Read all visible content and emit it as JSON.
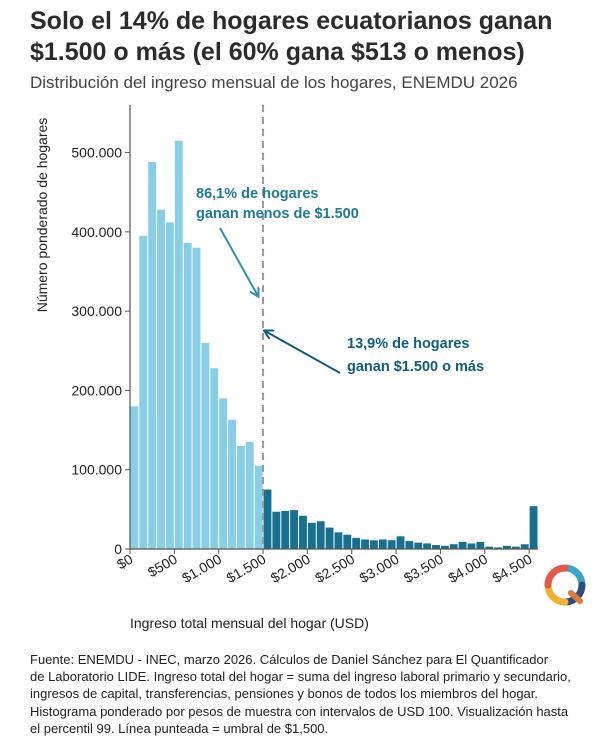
{
  "header": {
    "title_line1": "Solo el 14% de hogares ecuatorianos ganan",
    "title_line2": "$1.500 o más (el 60% gana $513 o menos)",
    "subtitle": "Distribución del ingreso mensual de los hogares, ENEMDU 2026"
  },
  "caption": {
    "line1": "Fuente: ENEMDU - INEC, marzo 2026. Cálculos de Daniel Sánchez para El Quantificador",
    "line2": "de Laboratorio LIDE. Ingreso total del hogar = suma del ingreso laboral primario y secundario,",
    "line3": "ingresos de capital, transferencias, pensiones y bonos de todos los miembros del hogar.",
    "line4": "Histograma ponderado por pesos de muestra con intervalos de USD 100. Visualización hasta",
    "line5": "el percentil 99. Línea punteada = umbral de $1,500."
  },
  "logo": {
    "icon": "q-logo-icon"
  },
  "colors": {
    "below": "#87CEE6",
    "above": "#17708F",
    "annotation": "#1C7A96",
    "arrow_left": "#2E8FB0",
    "arrow_right": "#0F5E7C",
    "threshold_line": "#999999"
  },
  "chart_data": {
    "type": "bar",
    "title": "Solo el 14% de hogares ecuatorianos ganan $1.500 o más (el 60% gana $513 o menos)",
    "subtitle": "Distribución del ingreso mensual de los hogares, ENEMDU 2026",
    "xlabel": "Ingreso total mensual del hogar (USD)",
    "ylabel": "Número ponderado de hogares",
    "xlim": [
      0,
      4600
    ],
    "ylim": [
      0,
      560000
    ],
    "bin_width": 100,
    "x_ticks": [
      0,
      500,
      1000,
      1500,
      2000,
      2500,
      3000,
      3500,
      4000,
      4500
    ],
    "x_tick_labels": [
      "$0",
      "$500",
      "$1.000",
      "$1.500",
      "$2.000",
      "$2.500",
      "$3.000",
      "$3.500",
      "$4.000",
      "$4.500"
    ],
    "y_ticks": [
      0,
      100000,
      200000,
      300000,
      400000,
      500000
    ],
    "y_tick_labels": [
      "0",
      "100.000",
      "200.000",
      "300.000",
      "400.000",
      "500.000"
    ],
    "threshold": 1500,
    "bins_start": [
      0,
      100,
      200,
      300,
      400,
      500,
      600,
      700,
      800,
      900,
      1000,
      1100,
      1200,
      1300,
      1400,
      1500,
      1600,
      1700,
      1800,
      1900,
      2000,
      2100,
      2200,
      2300,
      2400,
      2500,
      2600,
      2700,
      2800,
      2900,
      3000,
      3100,
      3200,
      3300,
      3400,
      3500,
      3600,
      3700,
      3800,
      3900,
      4000,
      4100,
      4200,
      4300,
      4400,
      4500
    ],
    "values": [
      180000,
      395000,
      488000,
      428000,
      412000,
      515000,
      386000,
      380000,
      260000,
      228000,
      190000,
      163000,
      130000,
      135000,
      105000,
      75000,
      47000,
      48000,
      49000,
      42000,
      33000,
      35000,
      27000,
      21000,
      18000,
      14000,
      12000,
      11000,
      12000,
      11000,
      16000,
      10000,
      8000,
      7000,
      5000,
      4000,
      6000,
      9000,
      7000,
      9000,
      3000,
      2000,
      4000,
      3000,
      6000,
      54000
    ],
    "annotations": [
      {
        "line1": "86,1% de hogares",
        "line2": "ganan menos de $1.500",
        "side": "below threshold"
      },
      {
        "line1": "13,9% de hogares",
        "line2": "ganan $1.500 o más",
        "side": "above threshold"
      }
    ],
    "grid": false
  }
}
